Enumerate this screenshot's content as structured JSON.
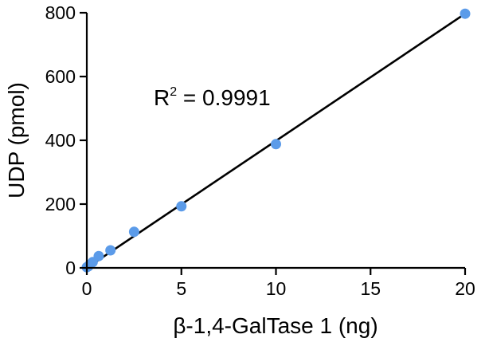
{
  "chart_data": {
    "type": "scatter",
    "title": "",
    "xlabel": "β-1,4-GalTase 1 (ng)",
    "ylabel": "UDP (pmol)",
    "xlim": [
      0,
      20
    ],
    "ylim": [
      0,
      800
    ],
    "x_ticks": [
      "0",
      "5",
      "10",
      "15",
      "20"
    ],
    "y_ticks": [
      "0",
      "200",
      "400",
      "600",
      "800"
    ],
    "grid": false,
    "legend": "none",
    "point_color": "#5b9be9",
    "line_color": "#000000",
    "series": [
      {
        "x": [
          0,
          0.08,
          0.16,
          0.31,
          0.63,
          1.25,
          2.5,
          5,
          10,
          20
        ],
        "y": [
          2,
          5,
          10,
          18,
          37,
          55,
          113,
          193,
          388,
          797
        ]
      }
    ],
    "fit": {
      "type": "linear",
      "x": [
        0,
        20
      ],
      "y": [
        0,
        797
      ]
    },
    "annotation": {
      "text": "R",
      "sup": "2",
      "rest": " = 0.9991"
    }
  }
}
